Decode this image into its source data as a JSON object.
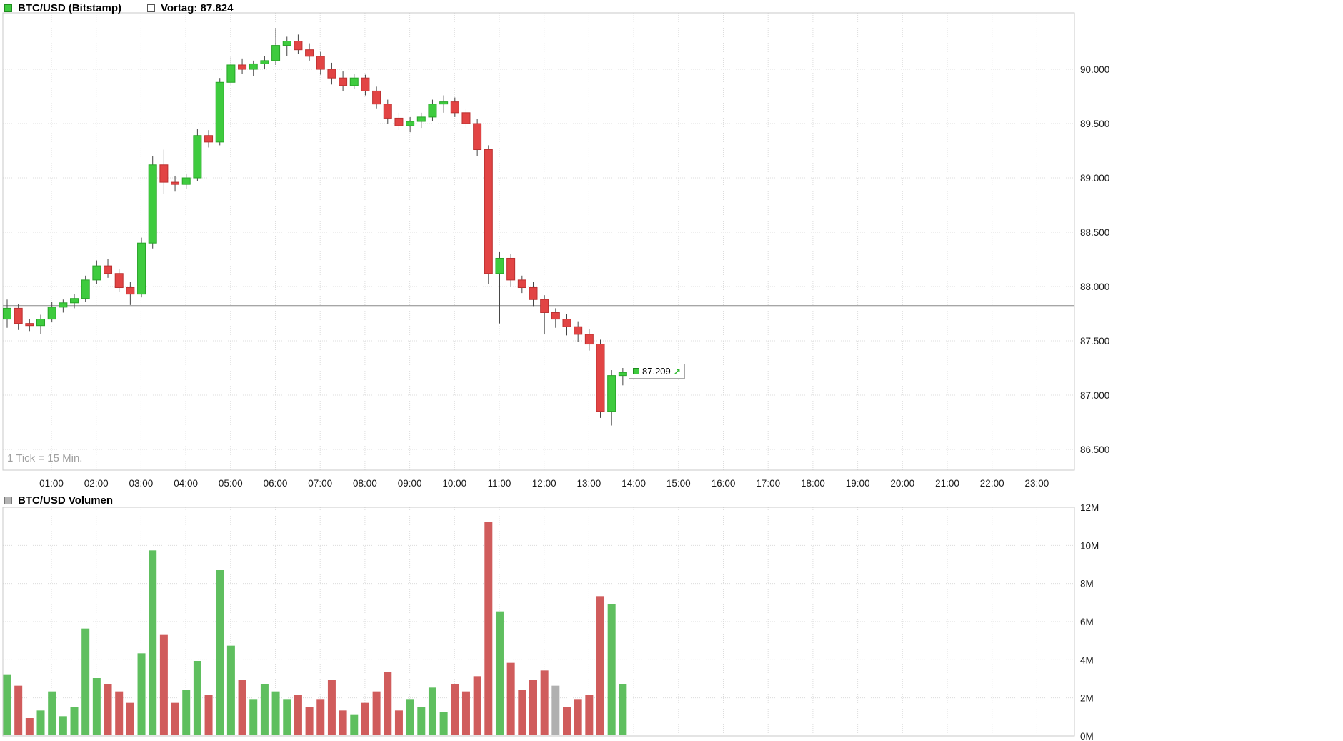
{
  "header": {
    "series_label": "BTC/USD (Bitstamp)",
    "prev_close_label": "Vortag: 87.824",
    "prev_close_value": 87824
  },
  "price_label": {
    "value": "87.209",
    "arrow": "↗"
  },
  "tick_note": "1 Tick = 15 Min.",
  "volume_header": {
    "label": "BTC/USD Volumen"
  },
  "colors": {
    "up": "#3ecb3e",
    "up_border": "#28a428",
    "down": "#e24444",
    "down_border": "#bb3030",
    "wick": "#444444",
    "vol_up": "#5fbf5f",
    "vol_down": "#d05c5c",
    "neutral": "#b0b0b0",
    "prev_close_line": "#888888",
    "grid": "#dcdcdc",
    "border": "#c8c8c8"
  },
  "chart_data": [
    {
      "type": "candlestick",
      "title": "BTC/USD (Bitstamp)",
      "interval_note": "1 Tick = 15 Min.",
      "prev_close": 87824,
      "last": 87209,
      "y_axis": {
        "ticks": [
          90000,
          89500,
          89000,
          88500,
          88000,
          87500,
          87000,
          86500
        ],
        "tick_labels": [
          "90.000",
          "89.500",
          "89.000",
          "88.500",
          "88.000",
          "87.500",
          "87.000",
          "86.500"
        ]
      },
      "x_axis": {
        "hour_labels": [
          "01:00",
          "02:00",
          "03:00",
          "04:00",
          "05:00",
          "06:00",
          "07:00",
          "08:00",
          "09:00",
          "10:00",
          "11:00",
          "12:00",
          "13:00",
          "14:00",
          "15:00",
          "16:00",
          "17:00",
          "18:00",
          "19:00",
          "20:00",
          "21:00",
          "22:00",
          "23:00"
        ]
      },
      "candles": [
        [
          "00:00",
          87700,
          87880,
          87620,
          87800
        ],
        [
          "00:15",
          87800,
          87840,
          87600,
          87660
        ],
        [
          "00:30",
          87660,
          87700,
          87590,
          87640
        ],
        [
          "00:45",
          87640,
          87740,
          87560,
          87700
        ],
        [
          "01:00",
          87700,
          87860,
          87670,
          87810
        ],
        [
          "01:15",
          87810,
          87880,
          87760,
          87850
        ],
        [
          "01:30",
          87850,
          87930,
          87800,
          87890
        ],
        [
          "01:45",
          87890,
          88100,
          87860,
          88060
        ],
        [
          "02:00",
          88060,
          88240,
          88020,
          88190
        ],
        [
          "02:15",
          88190,
          88250,
          88080,
          88120
        ],
        [
          "02:30",
          88120,
          88160,
          87950,
          87990
        ],
        [
          "02:45",
          87990,
          88040,
          87830,
          87930
        ],
        [
          "03:00",
          87930,
          88450,
          87900,
          88400
        ],
        [
          "03:15",
          88400,
          89200,
          88350,
          89120
        ],
        [
          "03:30",
          89120,
          89260,
          88850,
          88960
        ],
        [
          "03:45",
          88960,
          89020,
          88880,
          88940
        ],
        [
          "04:00",
          88940,
          89040,
          88900,
          89000
        ],
        [
          "04:15",
          89000,
          89450,
          88970,
          89390
        ],
        [
          "04:30",
          89390,
          89440,
          89280,
          89330
        ],
        [
          "04:45",
          89330,
          89920,
          89300,
          89880
        ],
        [
          "05:00",
          89880,
          90120,
          89850,
          90040
        ],
        [
          "05:15",
          90040,
          90100,
          89960,
          90000
        ],
        [
          "05:30",
          90000,
          90080,
          89940,
          90050
        ],
        [
          "05:45",
          90050,
          90120,
          90000,
          90080
        ],
        [
          "06:00",
          90080,
          90380,
          90040,
          90220
        ],
        [
          "06:15",
          90220,
          90300,
          90120,
          90260
        ],
        [
          "06:30",
          90260,
          90320,
          90140,
          90180
        ],
        [
          "06:45",
          90180,
          90240,
          90080,
          90120
        ],
        [
          "07:00",
          90120,
          90160,
          89950,
          90000
        ],
        [
          "07:15",
          90000,
          90060,
          89860,
          89920
        ],
        [
          "07:30",
          89920,
          89980,
          89800,
          89850
        ],
        [
          "07:45",
          89850,
          89960,
          89820,
          89920
        ],
        [
          "08:00",
          89920,
          89950,
          89760,
          89800
        ],
        [
          "08:15",
          89800,
          89840,
          89640,
          89680
        ],
        [
          "08:30",
          89680,
          89720,
          89500,
          89550
        ],
        [
          "08:45",
          89550,
          89600,
          89440,
          89480
        ],
        [
          "09:00",
          89480,
          89560,
          89420,
          89520
        ],
        [
          "09:15",
          89520,
          89600,
          89460,
          89560
        ],
        [
          "09:30",
          89560,
          89720,
          89520,
          89680
        ],
        [
          "09:45",
          89680,
          89760,
          89600,
          89700
        ],
        [
          "10:00",
          89700,
          89740,
          89560,
          89600
        ],
        [
          "10:15",
          89600,
          89640,
          89460,
          89500
        ],
        [
          "10:30",
          89500,
          89540,
          89200,
          89260
        ],
        [
          "10:45",
          89260,
          89300,
          88020,
          88120
        ],
        [
          "11:00",
          88120,
          88320,
          87660,
          88260
        ],
        [
          "11:15",
          88260,
          88300,
          88000,
          88060
        ],
        [
          "11:30",
          88060,
          88100,
          87940,
          87990
        ],
        [
          "11:45",
          87990,
          88040,
          87820,
          87880
        ],
        [
          "12:00",
          87880,
          87920,
          87560,
          87760
        ],
        [
          "12:15",
          87760,
          87800,
          87620,
          87700
        ],
        [
          "12:30",
          87700,
          87750,
          87550,
          87630
        ],
        [
          "12:45",
          87630,
          87680,
          87490,
          87560
        ],
        [
          "13:00",
          87560,
          87610,
          87410,
          87470
        ],
        [
          "13:15",
          87470,
          87510,
          86790,
          86850
        ],
        [
          "13:30",
          86850,
          87230,
          86720,
          87180
        ],
        [
          "13:45",
          87180,
          87250,
          87090,
          87209
        ]
      ]
    },
    {
      "type": "bar",
      "title": "BTC/USD Volumen",
      "y_axis": {
        "ticks_m": [
          12,
          10,
          8,
          6,
          4,
          2,
          0
        ],
        "tick_labels": [
          "12M",
          "10M",
          "8M",
          "6M",
          "4M",
          "2M",
          "0M"
        ]
      },
      "volumes_m": [
        3.2,
        2.6,
        0.9,
        1.3,
        2.3,
        1.0,
        1.5,
        5.6,
        3.0,
        2.7,
        2.3,
        1.7,
        4.3,
        9.7,
        5.3,
        1.7,
        2.4,
        3.9,
        2.1,
        8.7,
        4.7,
        2.9,
        1.9,
        2.7,
        2.3,
        1.9,
        2.1,
        1.5,
        1.9,
        2.9,
        1.3,
        1.1,
        1.7,
        2.3,
        3.3,
        1.3,
        1.9,
        1.5,
        2.5,
        1.2,
        2.7,
        2.3,
        3.1,
        11.2,
        6.5,
        3.8,
        2.4,
        2.9,
        3.4,
        2.6,
        1.5,
        1.9,
        2.1,
        7.3,
        6.9,
        2.7
      ],
      "neutral_indices": [
        49
      ]
    }
  ]
}
